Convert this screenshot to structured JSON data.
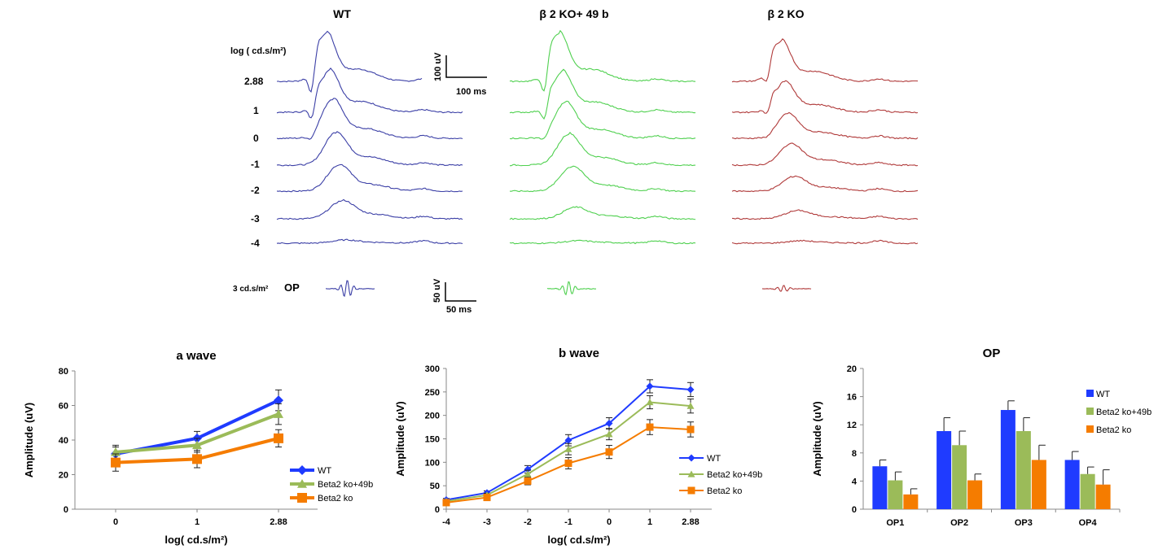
{
  "traces": {
    "panels": [
      {
        "title": "WT",
        "color": "#3b3fa6"
      },
      {
        "title": "β 2 KO+ 49 b",
        "color": "#4fd04f"
      },
      {
        "title": "β 2 KO",
        "color": "#b03a3a"
      }
    ],
    "intensity_header": "log ( cd.s/m²)",
    "intensity_labels": [
      "2.88",
      "1",
      "0",
      "-1",
      "-2",
      "-3",
      "-4"
    ],
    "op_label": "3 cd.s/m²",
    "op_short": "OP",
    "scale_bar_top": {
      "y_label": "100 uV",
      "x_label": "100 ms"
    },
    "scale_bar_bottom": {
      "y_label": "50 uV",
      "x_label": "50 ms"
    }
  },
  "chart_data": [
    {
      "type": "line",
      "title": "a wave",
      "xlabel": "log( cd.s/m²)",
      "ylabel": "Amplitude (uV)",
      "categories": [
        "0",
        "1",
        "2.88"
      ],
      "ylim": [
        0,
        80
      ],
      "yticks": [
        0,
        20,
        40,
        60,
        80
      ],
      "legend": "bottom-right",
      "series": [
        {
          "name": "WT",
          "color": "#1f3bff",
          "marker": "diamond",
          "values": [
            32,
            41,
            63
          ],
          "errors": [
            4,
            4,
            6
          ]
        },
        {
          "name": "Beta2 ko+49b",
          "color": "#9bbb59",
          "marker": "triangle",
          "values": [
            33,
            37,
            55
          ],
          "errors": [
            4,
            4,
            6
          ]
        },
        {
          "name": "Beta2 ko",
          "color": "#f57c00",
          "marker": "square",
          "values": [
            27,
            29,
            41
          ],
          "errors": [
            5,
            5,
            5
          ]
        }
      ]
    },
    {
      "type": "line",
      "title": "b wave",
      "xlabel": "log( cd.s/m²)",
      "ylabel": "Amplitude (uV)",
      "categories": [
        "-4",
        "-3",
        "-2",
        "-1",
        "0",
        "1",
        "2.88"
      ],
      "ylim": [
        0,
        300
      ],
      "yticks": [
        0,
        50,
        100,
        150,
        200,
        250,
        300
      ],
      "legend": "bottom-right",
      "series": [
        {
          "name": "WT",
          "color": "#1f3bff",
          "marker": "diamond",
          "values": [
            20,
            35,
            85,
            147,
            183,
            262,
            255
          ],
          "errors": [
            3,
            4,
            8,
            12,
            12,
            14,
            15
          ]
        },
        {
          "name": "Beta2 ko+49b",
          "color": "#9bbb59",
          "marker": "triangle",
          "values": [
            17,
            30,
            75,
            128,
            160,
            228,
            220
          ],
          "errors": [
            3,
            4,
            8,
            12,
            12,
            14,
            15
          ]
        },
        {
          "name": "Beta2 ko",
          "color": "#f57c00",
          "marker": "square",
          "values": [
            14,
            25,
            60,
            98,
            122,
            175,
            170
          ],
          "errors": [
            3,
            4,
            8,
            12,
            14,
            16,
            16
          ]
        }
      ]
    },
    {
      "type": "bar",
      "title": "OP",
      "ylabel": "Amplitude (uV)",
      "categories": [
        "OP1",
        "OP2",
        "OP3",
        "OP4"
      ],
      "ylim": [
        0,
        20
      ],
      "yticks": [
        0,
        4,
        8,
        12,
        16,
        20
      ],
      "legend": "top-right",
      "series": [
        {
          "name": "WT",
          "color": "#1f3bff",
          "values": [
            6.1,
            11.1,
            14.1,
            7.0
          ],
          "errors": [
            0.9,
            1.9,
            1.3,
            1.2
          ]
        },
        {
          "name": "Beta2 ko+49b",
          "color": "#9bbb59",
          "values": [
            4.1,
            9.1,
            11.1,
            5.0
          ],
          "errors": [
            1.2,
            2.0,
            1.9,
            1.0
          ]
        },
        {
          "name": "Beta2 ko",
          "color": "#f57c00",
          "values": [
            2.1,
            4.1,
            7.0,
            3.5
          ],
          "errors": [
            0.8,
            0.9,
            2.1,
            2.1
          ]
        }
      ]
    }
  ]
}
